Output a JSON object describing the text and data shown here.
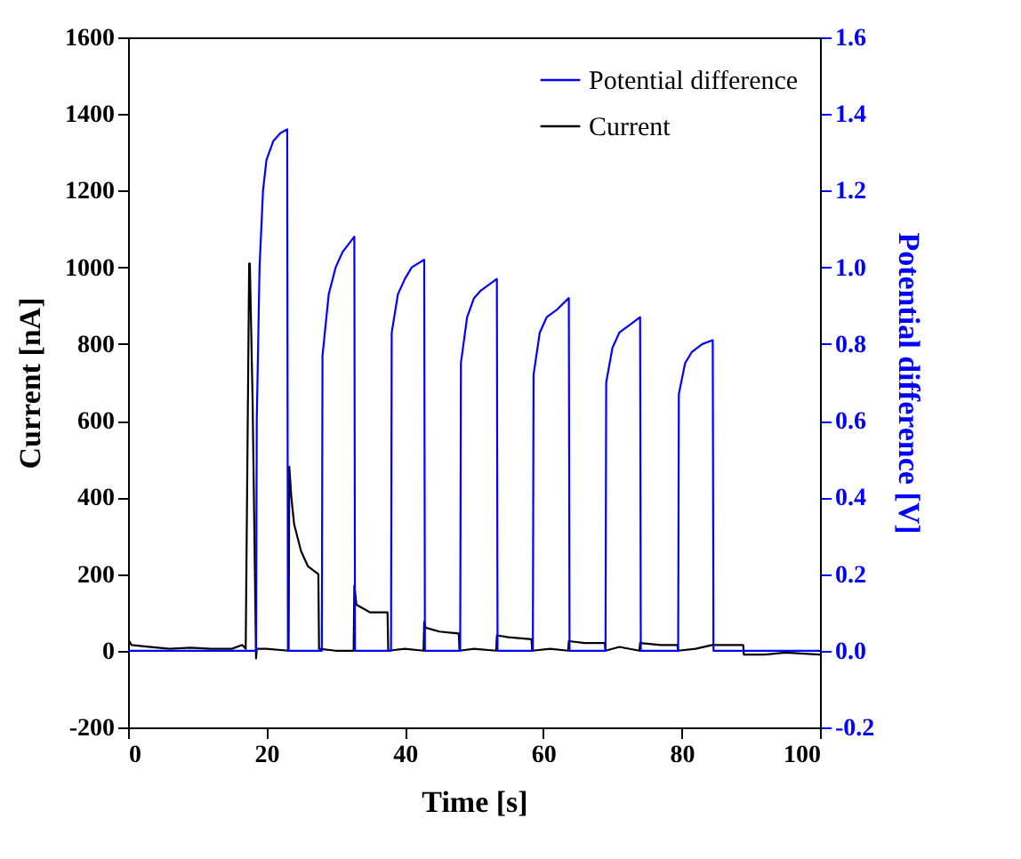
{
  "chart_data": {
    "type": "line",
    "xlabel": "Time [s]",
    "ylabel": "Current [nA]",
    "y2label": "Potential difference [V]",
    "xlim": [
      0,
      100
    ],
    "xticks": [
      0,
      20,
      40,
      60,
      80,
      100
    ],
    "ylim": [
      -200,
      1600
    ],
    "yticks": [
      -200,
      0,
      200,
      400,
      600,
      800,
      1000,
      1200,
      1400,
      1600
    ],
    "y2lim": [
      -0.2,
      1.6
    ],
    "y2ticks": [
      {
        "value": -0.2,
        "label": "-0.2"
      },
      {
        "value": 0,
        "label": "0.0"
      },
      {
        "value": 0.2,
        "label": "0.2"
      },
      {
        "value": 0.4,
        "label": "0.4"
      },
      {
        "value": 0.6,
        "label": "0.6"
      },
      {
        "value": 0.8,
        "label": "0.8"
      },
      {
        "value": 1,
        "label": "1.0"
      },
      {
        "value": 1.2,
        "label": "1.2"
      },
      {
        "value": 1.4,
        "label": "1.4"
      },
      {
        "value": 1.6,
        "label": "1.6"
      }
    ],
    "grid": false,
    "legend": "top right",
    "marker": "none",
    "line_style": "solid",
    "series": [
      {
        "name": "Potential difference",
        "color": "#0000ff",
        "axis": "y2",
        "x": [
          0,
          18.5,
          18.6,
          19,
          19.5,
          20,
          21,
          22,
          23,
          23.1,
          28,
          28.1,
          29,
          30,
          31,
          32.7,
          32.8,
          38,
          38.1,
          39,
          40,
          41,
          42.8,
          42.9,
          48,
          48.1,
          49,
          50,
          51,
          53.3,
          53.4,
          58.5,
          58.6,
          59.5,
          60.5,
          62,
          63.7,
          63.8,
          69,
          69.1,
          70,
          71,
          72.5,
          74,
          74.1,
          79.5,
          79.6,
          80.5,
          81.5,
          83,
          84.5,
          84.6,
          100
        ],
        "values": [
          0,
          0,
          0.6,
          1.0,
          1.2,
          1.28,
          1.33,
          1.35,
          1.36,
          0,
          0,
          0.77,
          0.93,
          1.0,
          1.04,
          1.08,
          0,
          0,
          0.83,
          0.93,
          0.97,
          1.0,
          1.02,
          0,
          0,
          0.75,
          0.87,
          0.92,
          0.94,
          0.97,
          0,
          0,
          0.72,
          0.83,
          0.87,
          0.89,
          0.92,
          0,
          0,
          0.7,
          0.79,
          0.83,
          0.85,
          0.87,
          0,
          0,
          0.67,
          0.75,
          0.78,
          0.8,
          0.81,
          0,
          0
        ]
      },
      {
        "name": "Current",
        "color": "#000000",
        "x": [
          0,
          0.5,
          3,
          6,
          9,
          12,
          15,
          16.5,
          17,
          17.5,
          17.6,
          18,
          18.5,
          18.6,
          20,
          23.2,
          23.3,
          23.6,
          24,
          25,
          26,
          27.5,
          27.6,
          30,
          32.6,
          32.7,
          33,
          35,
          37.5,
          37.6,
          40,
          42.7,
          42.8,
          43,
          45,
          47.8,
          47.9,
          50,
          53.2,
          53.3,
          55,
          58.3,
          58.4,
          61,
          63.6,
          63.7,
          66,
          68.9,
          69,
          71,
          73.9,
          74,
          77,
          79.4,
          79.5,
          82,
          84.4,
          84.5,
          86,
          88.9,
          89,
          92,
          95,
          100
        ],
        "values": [
          30,
          15,
          10,
          5,
          8,
          5,
          5,
          15,
          5,
          1010,
          1010,
          650,
          -20,
          5,
          5,
          0,
          480,
          400,
          330,
          260,
          220,
          200,
          5,
          0,
          0,
          170,
          120,
          100,
          100,
          0,
          5,
          0,
          75,
          60,
          50,
          45,
          0,
          5,
          0,
          40,
          35,
          30,
          0,
          5,
          0,
          25,
          20,
          20,
          0,
          10,
          0,
          20,
          15,
          15,
          0,
          5,
          15,
          15,
          15,
          15,
          -10,
          -10,
          -5,
          -10
        ]
      }
    ]
  }
}
